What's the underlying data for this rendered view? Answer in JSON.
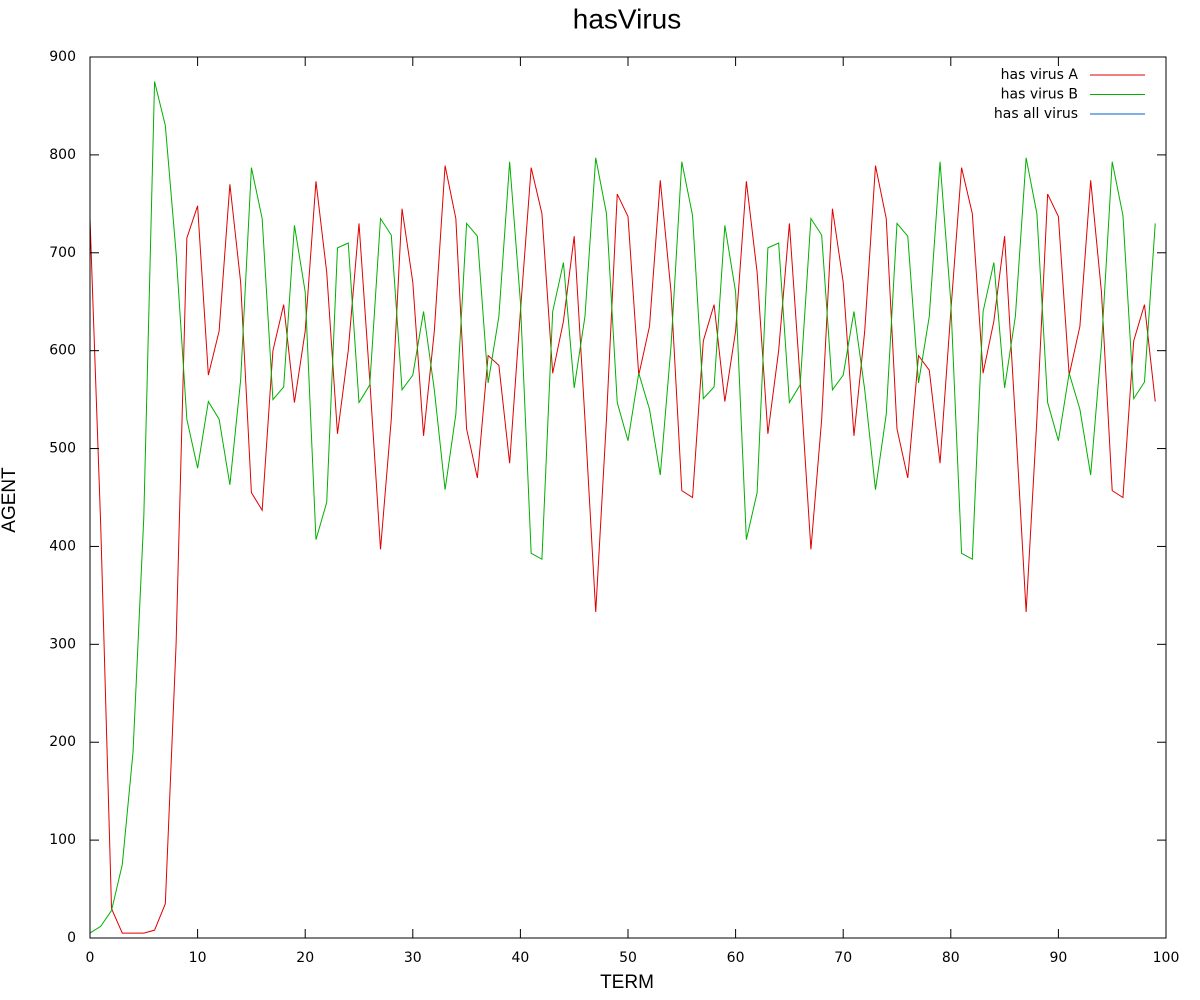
{
  "chart_data": {
    "type": "line",
    "title": "hasVirus",
    "x_label": "TERM",
    "y_label": "AGENT",
    "x": [
      0,
      1,
      2,
      3,
      4,
      5,
      6,
      7,
      8,
      9,
      10,
      11,
      12,
      13,
      14,
      15,
      16,
      17,
      18,
      19,
      20,
      21,
      22,
      23,
      24,
      25,
      26,
      27,
      28,
      29,
      30,
      31,
      32,
      33,
      34,
      35,
      36,
      37,
      38,
      39,
      40,
      41,
      42,
      43,
      44,
      45,
      46,
      47,
      48,
      49,
      50,
      51,
      52,
      53,
      54,
      55,
      56,
      57,
      58,
      59,
      60,
      61,
      62,
      63,
      64,
      65,
      66,
      67,
      68,
      69,
      70,
      71,
      72,
      73,
      74,
      75,
      76,
      77,
      78,
      79,
      80,
      81,
      82,
      83,
      84,
      85,
      86,
      87,
      88,
      89,
      90,
      91,
      92,
      93,
      94,
      95,
      96,
      97,
      98,
      99
    ],
    "series": [
      {
        "name": "has virus A",
        "color": "#e00000",
        "values": [
          735,
          420,
          30,
          5,
          5,
          5,
          8,
          35,
          300,
          715,
          748,
          575,
          620,
          770,
          670,
          455,
          437,
          600,
          647,
          547,
          620,
          773,
          680,
          515,
          600,
          730,
          570,
          397,
          530,
          745,
          670,
          513,
          620,
          789,
          735,
          520,
          470,
          595,
          585,
          485,
          640,
          787,
          740,
          577,
          630,
          717,
          530,
          333,
          530,
          760,
          737,
          575,
          625,
          774,
          660,
          457,
          450,
          610,
          647,
          548,
          620,
          773,
          680,
          515,
          600,
          730,
          570,
          397,
          530,
          745,
          670,
          513,
          620,
          789,
          735,
          520,
          470,
          595,
          580,
          485,
          640,
          787,
          740,
          577,
          630,
          717,
          530,
          333,
          530,
          760,
          737,
          575,
          625,
          774,
          660,
          457,
          450,
          610,
          647,
          548
        ]
      },
      {
        "name": "has virus B",
        "color": "#00b000",
        "values": [
          5,
          12,
          28,
          75,
          190,
          430,
          875,
          830,
          700,
          530,
          480,
          548,
          530,
          463,
          570,
          787,
          735,
          550,
          563,
          728,
          660,
          407,
          445,
          705,
          710,
          547,
          565,
          735,
          718,
          560,
          575,
          640,
          560,
          458,
          535,
          730,
          717,
          567,
          635,
          793,
          650,
          393,
          387,
          640,
          690,
          562,
          635,
          797,
          740,
          547,
          508,
          577,
          540,
          473,
          605,
          793,
          738,
          551,
          563,
          728,
          660,
          407,
          455,
          705,
          710,
          547,
          565,
          735,
          718,
          560,
          575,
          640,
          560,
          458,
          535,
          730,
          717,
          567,
          635,
          793,
          650,
          393,
          387,
          640,
          690,
          562,
          635,
          797,
          740,
          547,
          508,
          577,
          540,
          473,
          605,
          793,
          738,
          551,
          568,
          730
        ]
      },
      {
        "name": "has all virus",
        "color": "#0060d0",
        "values": [
          0,
          0,
          0,
          0,
          0,
          0,
          0,
          0,
          0,
          0,
          0,
          0,
          0,
          0,
          0,
          0,
          0,
          0,
          0,
          0,
          0,
          0,
          0,
          0,
          0,
          0,
          0,
          0,
          0,
          0,
          0,
          0,
          0,
          0,
          0,
          0,
          0,
          0,
          0,
          0,
          0,
          0,
          0,
          0,
          0,
          0,
          0,
          0,
          0,
          0,
          0,
          0,
          0,
          0,
          0,
          0,
          0,
          0,
          0,
          0,
          0,
          0,
          0,
          0,
          0,
          0,
          0,
          0,
          0,
          0,
          0,
          0,
          0,
          0,
          0,
          0,
          0,
          0,
          0,
          0,
          0,
          0,
          0,
          0,
          0,
          0,
          0,
          0,
          0,
          0,
          0,
          0,
          0,
          0,
          0,
          0,
          0,
          0,
          0,
          0
        ]
      }
    ],
    "xlim": [
      0,
      100
    ],
    "xticks": [
      0,
      10,
      20,
      30,
      40,
      50,
      60,
      70,
      80,
      90,
      100
    ],
    "ylim": [
      0,
      900
    ],
    "yticks": [
      0,
      100,
      200,
      300,
      400,
      500,
      600,
      700,
      800,
      900
    ],
    "legend": "upper right"
  }
}
